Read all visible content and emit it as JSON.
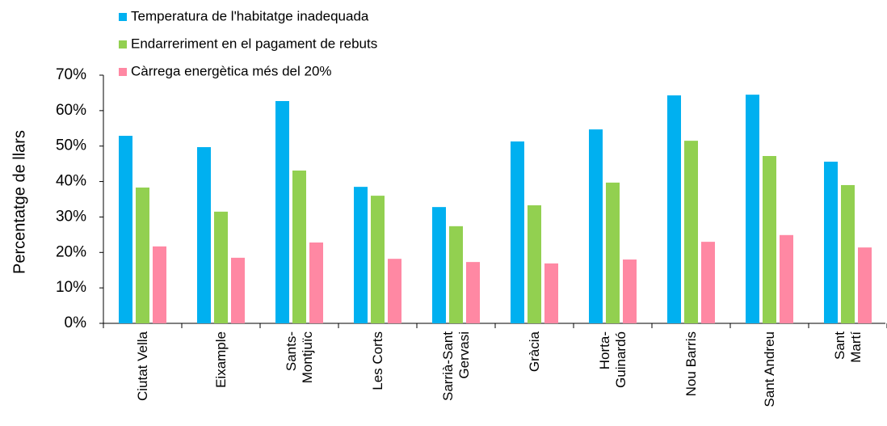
{
  "chart_data": {
    "type": "bar",
    "categories": [
      "Ciutat Vella",
      "Eixample",
      "Sants-\nMontjuïc",
      "Les Corts",
      "Sarrià-Sant\nGervasi",
      "Gràcia",
      "Horta-\nGuinardó",
      "Nou Barris",
      "Sant Andreu",
      "Sant Martí"
    ],
    "series": [
      {
        "name": "Temperatura de l'habitatge inadequada",
        "color": "#00b0f0",
        "values": [
          52.9,
          49.7,
          62.7,
          38.5,
          32.8,
          51.3,
          54.7,
          64.3,
          64.5,
          45.6
        ]
      },
      {
        "name": "Endarreriment en el pagament de rebuts",
        "color": "#92d050",
        "values": [
          38.3,
          31.5,
          43.1,
          36.0,
          27.4,
          33.3,
          39.7,
          51.5,
          47.2,
          39.0
        ]
      },
      {
        "name": "Càrrega energètica més del 20%",
        "color": "#ff88a3",
        "values": [
          21.7,
          18.5,
          22.8,
          18.2,
          17.3,
          16.9,
          18.0,
          23.0,
          24.9,
          21.4
        ]
      }
    ],
    "y_label": "Percentatge de llars",
    "ylim": [
      0,
      70
    ],
    "yticks": [
      {
        "value": 0,
        "label": "0%"
      },
      {
        "value": 10,
        "label": "10%"
      },
      {
        "value": 20,
        "label": "20%"
      },
      {
        "value": 30,
        "label": "30%"
      },
      {
        "value": 40,
        "label": "40%"
      },
      {
        "value": 50,
        "label": "50%"
      },
      {
        "value": 60,
        "label": "60%"
      },
      {
        "value": 70,
        "label": "70%"
      }
    ],
    "grid": false,
    "legend": "top-left"
  }
}
